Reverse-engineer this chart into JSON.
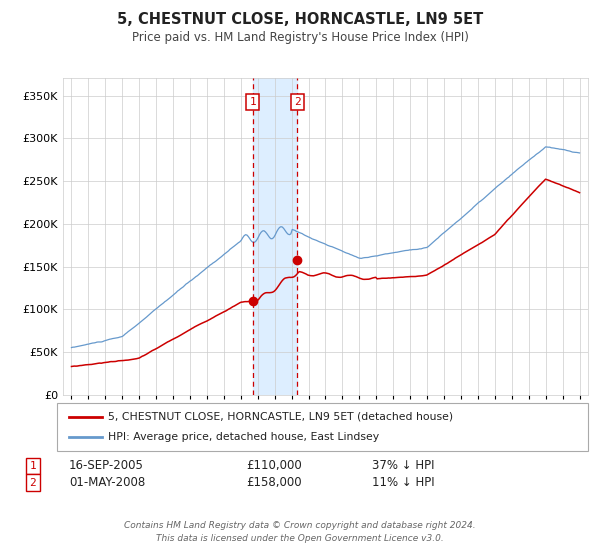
{
  "title": "5, CHESTNUT CLOSE, HORNCASTLE, LN9 5ET",
  "subtitle": "Price paid vs. HM Land Registry's House Price Index (HPI)",
  "legend_line1": "5, CHESTNUT CLOSE, HORNCASTLE, LN9 5ET (detached house)",
  "legend_line2": "HPI: Average price, detached house, East Lindsey",
  "transaction1_label": "1",
  "transaction1_date": "16-SEP-2005",
  "transaction1_price": "£110,000",
  "transaction1_hpi": "37% ↓ HPI",
  "transaction2_label": "2",
  "transaction2_date": "01-MAY-2008",
  "transaction2_price": "£158,000",
  "transaction2_hpi": "11% ↓ HPI",
  "footer1": "Contains HM Land Registry data © Crown copyright and database right 2024.",
  "footer2": "This data is licensed under the Open Government Licence v3.0.",
  "red_color": "#cc0000",
  "blue_color": "#6699cc",
  "shade_color": "#ddeeff",
  "grid_color": "#cccccc",
  "bg_color": "#ffffff",
  "ylim": [
    0,
    370000
  ],
  "yticks": [
    0,
    50000,
    100000,
    150000,
    200000,
    250000,
    300000,
    350000
  ],
  "xlim_start": 1994.5,
  "xlim_end": 2025.5,
  "transaction1_x": 2005.71,
  "transaction2_x": 2008.33,
  "transaction1_y": 110000,
  "transaction2_y": 158000,
  "shade_x1": 2005.71,
  "shade_x2": 2008.33
}
